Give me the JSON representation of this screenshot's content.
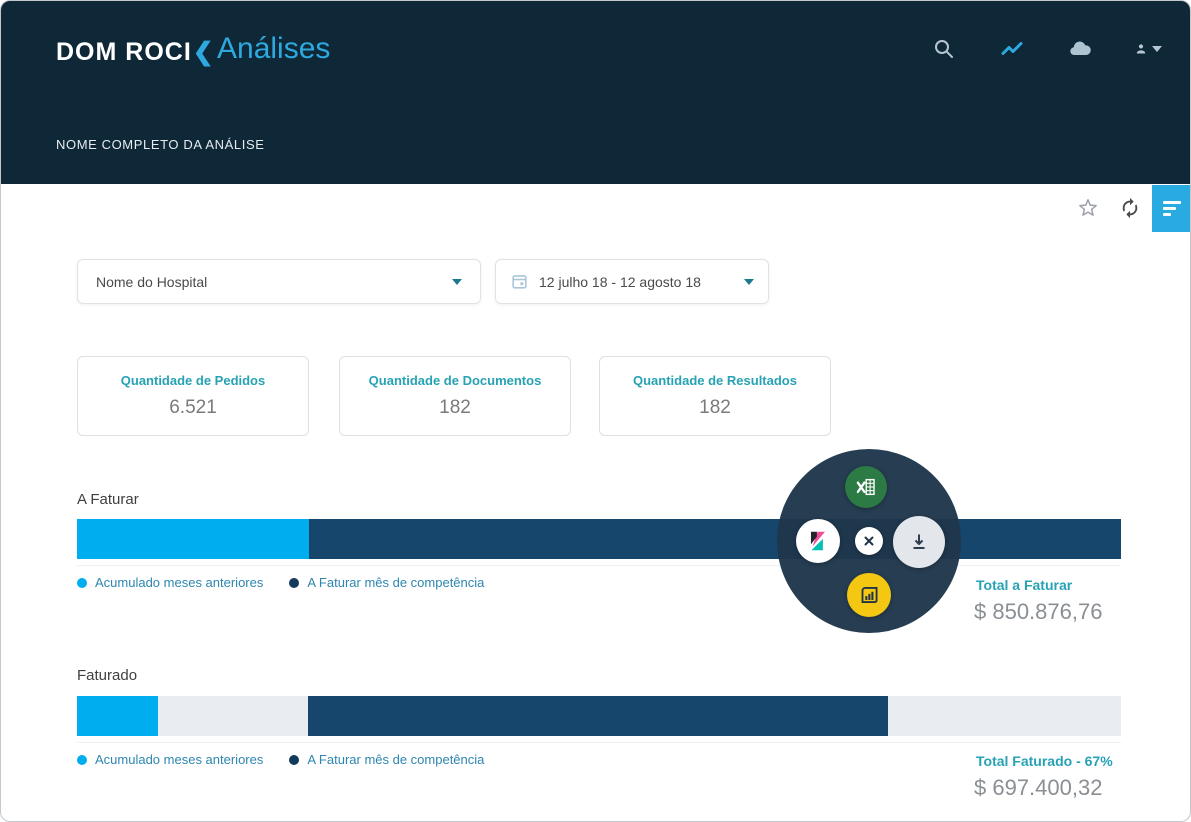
{
  "header": {
    "logo_text": "DOM ROCI",
    "logo_chevron": "❮",
    "title": "Análises",
    "icons": [
      "search-icon",
      "chart-icon",
      "cloud-icon",
      "user-icon"
    ]
  },
  "breadcrumb": "NOME COMPLETO DA ANÁLISE",
  "toolbar": {
    "icons": [
      "star-icon",
      "refresh-icon",
      "filter-lines-icon"
    ]
  },
  "filters": {
    "hospital": {
      "value": "Nome do Hospital"
    },
    "date_range": {
      "value": "12 julho 18 - 12 agosto 18",
      "icon": "calendar-icon"
    }
  },
  "stats": [
    {
      "label": "Quantidade de Pedidos",
      "value": "6.521"
    },
    {
      "label": "Quantidade de Documentos",
      "value": "182"
    },
    {
      "label": "Quantidade de Resultados",
      "value": "182"
    }
  ],
  "sections": [
    {
      "title": "A Faturar",
      "bar": {
        "track_color": "#e9edf1",
        "segments": [
          {
            "name": "acumulado-meses-anteriores",
            "color": "#00aeef",
            "left_pct": 0,
            "width_pct": 22.2
          },
          {
            "name": "a-faturar-mes-competencia",
            "color": "#16466b",
            "left_pct": 22.2,
            "width_pct": 77.8
          }
        ]
      },
      "legend": [
        {
          "label": "Acumulado meses anteriores",
          "color": "#00aeef"
        },
        {
          "label": "A Faturar mês de competência",
          "color": "#13395b"
        }
      ],
      "total_label": "Total a Faturar",
      "total_value": "$ 850.876,76"
    },
    {
      "title": "Faturado",
      "bar": {
        "track_color": "#e9edf1",
        "segments": [
          {
            "name": "acumulado-meses-anteriores",
            "color": "#00aeef",
            "left_pct": 0,
            "width_pct": 7.8
          },
          {
            "name": "a-faturar-mes-competencia",
            "color": "#16466b",
            "left_pct": 22.1,
            "width_pct": 55.6
          }
        ]
      },
      "legend": [
        {
          "label": "Acumulado meses anteriores",
          "color": "#00aeef"
        },
        {
          "label": "A Faturar mês de competência",
          "color": "#13395b"
        }
      ],
      "total_label": "Total Faturado - 67%",
      "total_value": "$ 697.400,32"
    }
  ],
  "floating_menu": {
    "items": [
      "excel-export-icon",
      "kibana-icon",
      "close-icon",
      "download-icon",
      "powerbi-icon"
    ]
  },
  "chart_data": [
    {
      "type": "bar",
      "title": "A Faturar",
      "series": [
        {
          "name": "Acumulado meses anteriores",
          "values": [
            22.2
          ]
        },
        {
          "name": "A Faturar mês de competência",
          "values": [
            77.8
          ]
        }
      ],
      "total": "$ 850.876,76"
    },
    {
      "type": "bar",
      "title": "Faturado",
      "series": [
        {
          "name": "Acumulado meses anteriores",
          "values": [
            7.8
          ]
        },
        {
          "name": "A Faturar mês de competência",
          "values": [
            55.6
          ]
        }
      ],
      "total": "$ 697.400,32",
      "percent_label": "67%"
    }
  ],
  "colors": {
    "header_bg": "#0e2838",
    "accent_blue": "#2ea9e0",
    "filter_button": "#29abe2",
    "bar_light_blue": "#00aeef",
    "bar_navy": "#16466b",
    "bar_track": "#e9edf1",
    "teal_label": "#27a2b4",
    "legend_text": "#2e86b0",
    "excel_green": "#2c7a44",
    "powerbi_yellow": "#f3c712",
    "kibana_pink": "#f04e98",
    "kibana_teal": "#00bfb3"
  }
}
